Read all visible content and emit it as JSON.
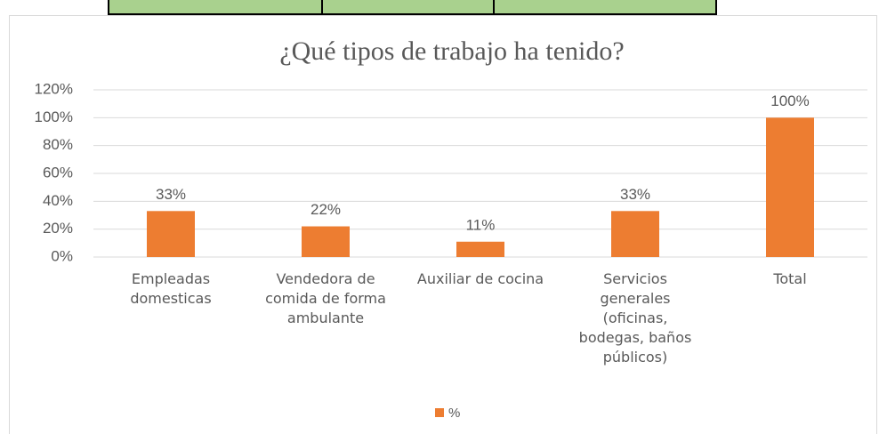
{
  "chart_data": {
    "type": "bar",
    "title": "¿Qué tipos de trabajo ha tenido?",
    "categories": [
      "Empleadas domesticas",
      "Vendedora de comida de forma ambulante",
      "Auxiliar de cocina",
      "Servicios generales (oficinas, bodegas, baños públicos)",
      "Total"
    ],
    "series": [
      {
        "name": "%",
        "color": "#ed7d31",
        "values": [
          33,
          22,
          11,
          33,
          100
        ],
        "value_labels": [
          "33%",
          "22%",
          "11%",
          "33%",
          "100%"
        ]
      }
    ],
    "ylim": [
      0,
      120
    ],
    "yticks": [
      {
        "value": 0,
        "label": "0%"
      },
      {
        "value": 20,
        "label": "20%"
      },
      {
        "value": 40,
        "label": "40%"
      },
      {
        "value": 60,
        "label": "60%"
      },
      {
        "value": 80,
        "label": "80%"
      },
      {
        "value": 100,
        "label": "100%"
      },
      {
        "value": 120,
        "label": "120%"
      }
    ],
    "grid": true,
    "legend": "bottom"
  }
}
